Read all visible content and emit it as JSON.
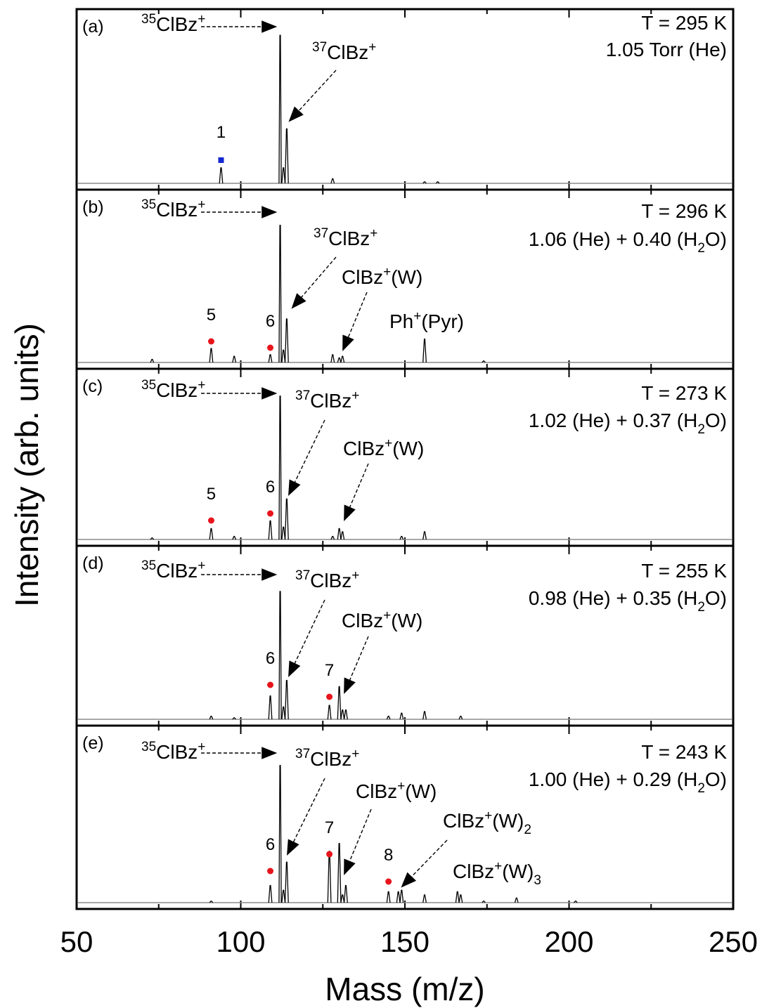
{
  "chart_data": {
    "type": "line",
    "xlabel": "Mass (m/z)",
    "ylabel": "Intensity (arb. units)",
    "xlim": [
      50,
      250
    ],
    "x_ticks": [
      "50",
      "100",
      "150",
      "200",
      "250"
    ],
    "ylim": [
      0,
      1
    ],
    "grid": false,
    "legend": "none",
    "colors": {
      "trace": "#000000",
      "baseline": "#8c8c8c",
      "marker_red": "#e8141c",
      "marker_blue": "#1428d0"
    },
    "panels": [
      {
        "label": "(a)",
        "conditions": [
          "T = 295 K",
          "1.05 Torr (He)"
        ],
        "peaks": [
          [
            94,
            0.1
          ],
          [
            112,
            0.95
          ],
          [
            113,
            0.1
          ],
          [
            114,
            0.35
          ],
          [
            128,
            0.03
          ],
          [
            156,
            0.01
          ],
          [
            160,
            0.01
          ]
        ],
        "annotations": [
          {
            "text": "35ClBz+",
            "iso": "35",
            "name": "ClBz",
            "sup": "+",
            "sub": ""
          },
          {
            "text": "37ClBz+",
            "iso": "37",
            "name": "ClBz",
            "sup": "+",
            "sub": ""
          }
        ],
        "markers": [
          {
            "label": "1",
            "x": 94,
            "color": "blue",
            "shape": "square"
          }
        ]
      },
      {
        "label": "(b)",
        "conditions": [
          "T = 296 K",
          "1.06 (He) + 0.40 (H2O)"
        ],
        "peaks": [
          [
            73,
            0.02
          ],
          [
            91,
            0.09
          ],
          [
            98,
            0.04
          ],
          [
            109,
            0.05
          ],
          [
            112,
            0.88
          ],
          [
            113,
            0.08
          ],
          [
            114,
            0.28
          ],
          [
            128,
            0.05
          ],
          [
            130,
            0.03
          ],
          [
            131,
            0.04
          ],
          [
            156,
            0.15
          ],
          [
            174,
            0.01
          ]
        ],
        "annotations": [
          {
            "text": "35ClBz+",
            "iso": "35",
            "name": "ClBz",
            "sup": "+",
            "sub": ""
          },
          {
            "text": "37ClBz+",
            "iso": "37",
            "name": "ClBz",
            "sup": "+",
            "sub": ""
          },
          {
            "text": "ClBz+(W)",
            "iso": "",
            "name": "ClBz",
            "sup": "+",
            "tail": "(W)",
            "sub": ""
          },
          {
            "text": "Ph+(Pyr)",
            "iso": "",
            "name": "Ph",
            "sup": "+",
            "tail": "(Pyr)",
            "sub": ""
          }
        ],
        "markers": [
          {
            "label": "5",
            "x": 91,
            "color": "red",
            "shape": "circle"
          },
          {
            "label": "6",
            "x": 109,
            "color": "red",
            "shape": "circle"
          }
        ]
      },
      {
        "label": "(c)",
        "conditions": [
          "T = 273 K",
          "1.02 (He) + 0.37 (H2O)"
        ],
        "peaks": [
          [
            73,
            0.01
          ],
          [
            91,
            0.07
          ],
          [
            98,
            0.02
          ],
          [
            109,
            0.12
          ],
          [
            112,
            0.92
          ],
          [
            113,
            0.08
          ],
          [
            114,
            0.26
          ],
          [
            128,
            0.02
          ],
          [
            130,
            0.07
          ],
          [
            131,
            0.05
          ],
          [
            149,
            0.02
          ],
          [
            156,
            0.05
          ]
        ],
        "annotations": [
          {
            "text": "35ClBz+",
            "iso": "35",
            "name": "ClBz",
            "sup": "+",
            "sub": ""
          },
          {
            "text": "37ClBz+",
            "iso": "37",
            "name": "ClBz",
            "sup": "+",
            "sub": ""
          },
          {
            "text": "ClBz+(W)",
            "iso": "",
            "name": "ClBz",
            "sup": "+",
            "tail": "(W)",
            "sub": ""
          }
        ],
        "markers": [
          {
            "label": "5",
            "x": 91,
            "color": "red",
            "shape": "circle"
          },
          {
            "label": "6",
            "x": 109,
            "color": "red",
            "shape": "circle"
          }
        ]
      },
      {
        "label": "(d)",
        "conditions": [
          "T = 255 K",
          "0.98 (He) + 0.35 (H2O)"
        ],
        "peaks": [
          [
            91,
            0.02
          ],
          [
            98,
            0.01
          ],
          [
            109,
            0.15
          ],
          [
            112,
            0.82
          ],
          [
            113,
            0.08
          ],
          [
            114,
            0.25
          ],
          [
            127,
            0.09
          ],
          [
            130,
            0.21
          ],
          [
            131,
            0.06
          ],
          [
            132,
            0.06
          ],
          [
            145,
            0.02
          ],
          [
            149,
            0.04
          ],
          [
            156,
            0.05
          ],
          [
            167,
            0.02
          ]
        ],
        "annotations": [
          {
            "text": "35ClBz+",
            "iso": "35",
            "name": "ClBz",
            "sup": "+",
            "sub": ""
          },
          {
            "text": "37ClBz+",
            "iso": "37",
            "name": "ClBz",
            "sup": "+",
            "sub": ""
          },
          {
            "text": "ClBz+(W)",
            "iso": "",
            "name": "ClBz",
            "sup": "+",
            "tail": "(W)",
            "sub": ""
          }
        ],
        "markers": [
          {
            "label": "6",
            "x": 109,
            "color": "red",
            "shape": "circle"
          },
          {
            "label": "7",
            "x": 127,
            "color": "red",
            "shape": "circle"
          }
        ]
      },
      {
        "label": "(e)",
        "conditions": [
          "T = 243 K",
          "1.00 (He) + 0.29 (H2O)"
        ],
        "peaks": [
          [
            91,
            0.01
          ],
          [
            109,
            0.11
          ],
          [
            112,
            0.88
          ],
          [
            113,
            0.08
          ],
          [
            114,
            0.26
          ],
          [
            127,
            0.33
          ],
          [
            130,
            0.38
          ],
          [
            131,
            0.05
          ],
          [
            132,
            0.11
          ],
          [
            145,
            0.07
          ],
          [
            148,
            0.07
          ],
          [
            149,
            0.08
          ],
          [
            156,
            0.05
          ],
          [
            166,
            0.07
          ],
          [
            167,
            0.05
          ],
          [
            174,
            0.01
          ],
          [
            184,
            0.03
          ],
          [
            202,
            0.01
          ]
        ],
        "annotations": [
          {
            "text": "35ClBz+",
            "iso": "35",
            "name": "ClBz",
            "sup": "+",
            "sub": ""
          },
          {
            "text": "37ClBz+",
            "iso": "37",
            "name": "ClBz",
            "sup": "+",
            "sub": ""
          },
          {
            "text": "ClBz+(W)",
            "iso": "",
            "name": "ClBz",
            "sup": "+",
            "tail": "(W)",
            "sub": ""
          },
          {
            "text": "ClBz+(W)2",
            "iso": "",
            "name": "ClBz",
            "sup": "+",
            "tail": "(W)",
            "sub": "2"
          },
          {
            "text": "ClBz+(W)3",
            "iso": "",
            "name": "ClBz",
            "sup": "+",
            "tail": "(W)",
            "sub": "3"
          }
        ],
        "markers": [
          {
            "label": "6",
            "x": 109,
            "color": "red",
            "shape": "circle"
          },
          {
            "label": "7",
            "x": 127,
            "color": "red",
            "shape": "circle"
          },
          {
            "label": "8",
            "x": 145,
            "color": "red",
            "shape": "circle"
          }
        ]
      }
    ]
  }
}
